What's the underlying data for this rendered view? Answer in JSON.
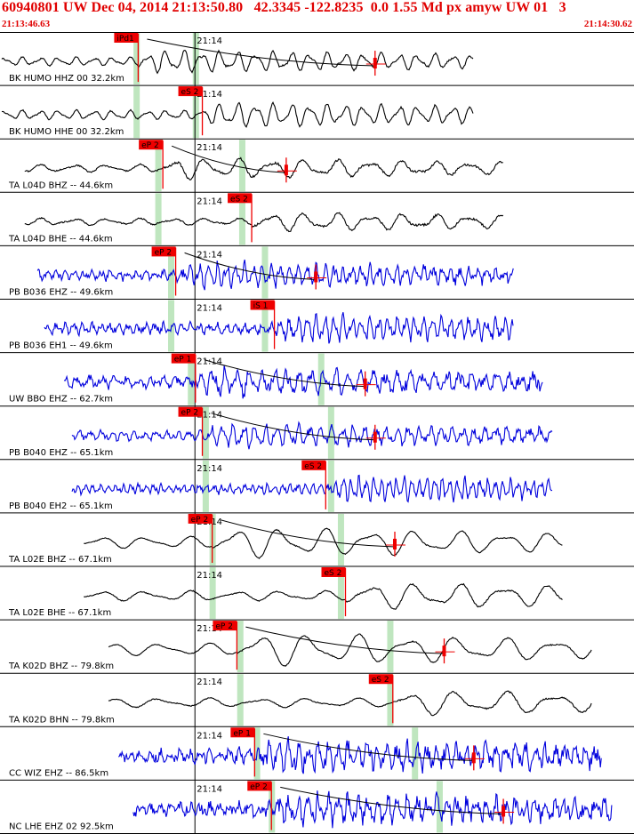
{
  "header": {
    "title": "60940801 UW Dec 04, 2014 21:13:50.80   42.3345 -122.8235  0.0 1.55 Md px amyw UW 01   3",
    "start_time": "21:13:46.63",
    "end_time": "21:14:30.62"
  },
  "colors": {
    "header": "#e00000",
    "trace_black": "#000000",
    "trace_blue": "#0000dd",
    "pick_box": "#ee0000",
    "pick_line": "#ee0000",
    "pick_window": "#bfe6bf",
    "tick_line": "#000000"
  },
  "chart_data": {
    "type": "line",
    "minute_label": "21:14",
    "traces": [
      {
        "label": "BK HUMO HHZ 00 32.2km",
        "color": "black",
        "pick": "iPd1",
        "pick_t": 14.0,
        "win_t": [
          13.8,
          19.8
        ],
        "amp": 0.55,
        "freq": 0.55,
        "noise": 0.05,
        "start_t": 0,
        "end_t": 48,
        "coda": true,
        "coda_t": 38
      },
      {
        "label": "BK HUMO HHE 00 32.2km",
        "color": "black",
        "pick": "eS 2",
        "pick_t": 20.5,
        "win_t": [
          13.8,
          19.8
        ],
        "amp": 0.6,
        "freq": 0.55,
        "noise": 0.05,
        "start_t": 0,
        "end_t": 48,
        "coda": false
      },
      {
        "label": "TA L04D BHZ -- 44.6km",
        "color": "black",
        "pick": "eP 2",
        "pick_t": 16.5,
        "win_t": [
          16.0,
          24.5
        ],
        "amp": 0.5,
        "freq": 0.3,
        "noise": 0.06,
        "start_t": 2.5,
        "end_t": 51,
        "coda": true,
        "coda_t": 29
      },
      {
        "label": "TA L04D BHE -- 44.6km",
        "color": "black",
        "pick": "eS 2",
        "pick_t": 25.5,
        "win_t": [
          16.0,
          24.5
        ],
        "amp": 0.45,
        "freq": 0.3,
        "noise": 0.06,
        "start_t": 2.5,
        "end_t": 51,
        "coda": false
      },
      {
        "label": "PB B036 EHZ -- 49.6km",
        "color": "blue",
        "pick": "eP 2",
        "pick_t": 17.8,
        "win_t": [
          17.3,
          26.8
        ],
        "amp": 0.55,
        "freq": 1.1,
        "noise": 0.25,
        "start_t": 3.8,
        "end_t": 52,
        "coda": true,
        "coda_t": 32
      },
      {
        "label": "PB B036 EH1 -- 49.6km",
        "color": "blue",
        "pick": "iS 1",
        "pick_t": 27.8,
        "win_t": [
          17.3,
          26.8
        ],
        "amp": 0.6,
        "freq": 1.1,
        "noise": 0.25,
        "start_t": 4.5,
        "end_t": 52,
        "coda": false
      },
      {
        "label": "UW BBO EHZ -- 62.7km",
        "color": "blue",
        "pick": "eP 1",
        "pick_t": 19.8,
        "win_t": [
          19.3,
          32.5
        ],
        "amp": 0.6,
        "freq": 0.8,
        "noise": 0.3,
        "start_t": 6.5,
        "end_t": 55,
        "coda": true,
        "coda_t": 37
      },
      {
        "label": "PB B040 EHZ -- 65.1km",
        "color": "blue",
        "pick": "eP 2",
        "pick_t": 20.5,
        "win_t": [
          20.8,
          33.5
        ],
        "amp": 0.55,
        "freq": 0.9,
        "noise": 0.2,
        "start_t": 7.3,
        "end_t": 56,
        "coda": true,
        "coda_t": 38
      },
      {
        "label": "PB B040 EH2 -- 65.1km",
        "color": "blue",
        "pick": "eS 2",
        "pick_t": 33.0,
        "win_t": [
          20.8,
          33.5
        ],
        "amp": 0.55,
        "freq": 1.3,
        "noise": 0.2,
        "start_t": 7.3,
        "end_t": 56,
        "coda": false
      },
      {
        "label": "TA L02E BHZ -- 67.1km",
        "color": "black",
        "pick": "eP 2",
        "pick_t": 21.5,
        "win_t": [
          21.5,
          34.5
        ],
        "amp": 0.75,
        "freq": 0.22,
        "noise": 0.03,
        "start_t": 8.5,
        "end_t": 57,
        "coda": true,
        "coda_t": 40
      },
      {
        "label": "TA L02E BHE -- 67.1km",
        "color": "black",
        "pick": "eS 2",
        "pick_t": 35.0,
        "win_t": [
          21.5,
          34.5
        ],
        "amp": 0.65,
        "freq": 0.22,
        "noise": 0.04,
        "start_t": 8.5,
        "end_t": 57,
        "coda": false
      },
      {
        "label": "TA K02D BHZ -- 79.8km",
        "color": "black",
        "pick": "eP 2",
        "pick_t": 24.0,
        "win_t": [
          24.3,
          39.5
        ],
        "amp": 0.8,
        "freq": 0.2,
        "noise": 0.03,
        "start_t": 11,
        "end_t": 60,
        "coda": true,
        "coda_t": 45
      },
      {
        "label": "TA K02D BHN -- 79.8km",
        "color": "black",
        "pick": "eS 2",
        "pick_t": 39.8,
        "win_t": [
          24.3,
          39.5
        ],
        "amp": 0.6,
        "freq": 0.2,
        "noise": 0.04,
        "start_t": 11,
        "end_t": 60,
        "coda": false
      },
      {
        "label": "CC WIZ EHZ -- 86.5km",
        "color": "blue",
        "pick": "eP 1",
        "pick_t": 25.8,
        "win_t": [
          26.0,
          42.0
        ],
        "amp": 0.7,
        "freq": 1.0,
        "noise": 0.4,
        "start_t": 12,
        "end_t": 61,
        "coda": true,
        "coda_t": 48
      },
      {
        "label": "NC LHE EHZ 02 92.5km",
        "color": "blue",
        "pick": "eP 2",
        "pick_t": 27.5,
        "win_t": [
          27.5,
          44.5
        ],
        "amp": 0.65,
        "freq": 1.0,
        "noise": 0.4,
        "start_t": 13.5,
        "end_t": 62,
        "coda": true,
        "coda_t": 51
      }
    ]
  }
}
